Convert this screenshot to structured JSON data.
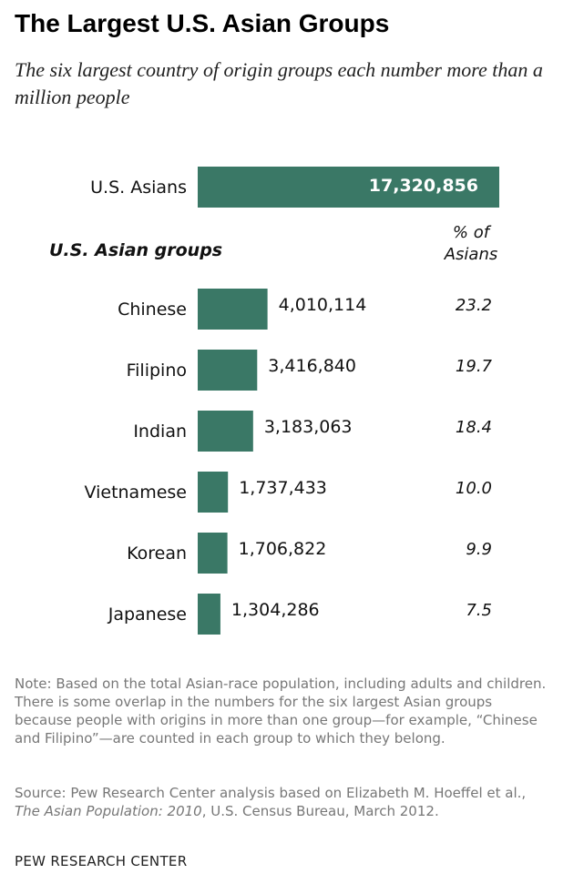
{
  "title": "The Largest U.S. Asian Groups",
  "subtitle": "The six largest country of origin groups each number more than a million people",
  "colors": {
    "bar": "#3a7866",
    "total_label": "#ffffff"
  },
  "chart_data": {
    "type": "bar",
    "orientation": "horizontal",
    "total": {
      "label": "U.S. Asians",
      "value": 17320856,
      "value_label": "17,320,856"
    },
    "group_heading": "U.S. Asian groups",
    "pct_heading": [
      "% of",
      "Asians"
    ],
    "categories": [
      "Chinese",
      "Filipino",
      "Indian",
      "Vietnamese",
      "Korean",
      "Japanese"
    ],
    "values": [
      4010114,
      3416840,
      3183063,
      1737433,
      1706822,
      1304286
    ],
    "value_labels": [
      "4,010,114",
      "3,416,840",
      "3,183,063",
      "1,737,433",
      "1,706,822",
      "1,304,286"
    ],
    "percent_labels": [
      "23.2",
      "19.7",
      "18.4",
      "10.0",
      "9.9",
      "7.5"
    ]
  },
  "note": "Note: Based on the total Asian-race population, including adults and children. There is some overlap in the numbers for the six largest Asian groups because people with origins in more than one group—for example, “Chinese and Filipino”—are counted in each group to which they belong.",
  "source": {
    "prefix": "Source: Pew Research Center analysis based on Elizabeth M. Hoeffel et al., ",
    "title": "The Asian Population: 2010",
    "suffix": ", U.S. Census Bureau, March 2012."
  },
  "footer": "PEW RESEARCH CENTER"
}
